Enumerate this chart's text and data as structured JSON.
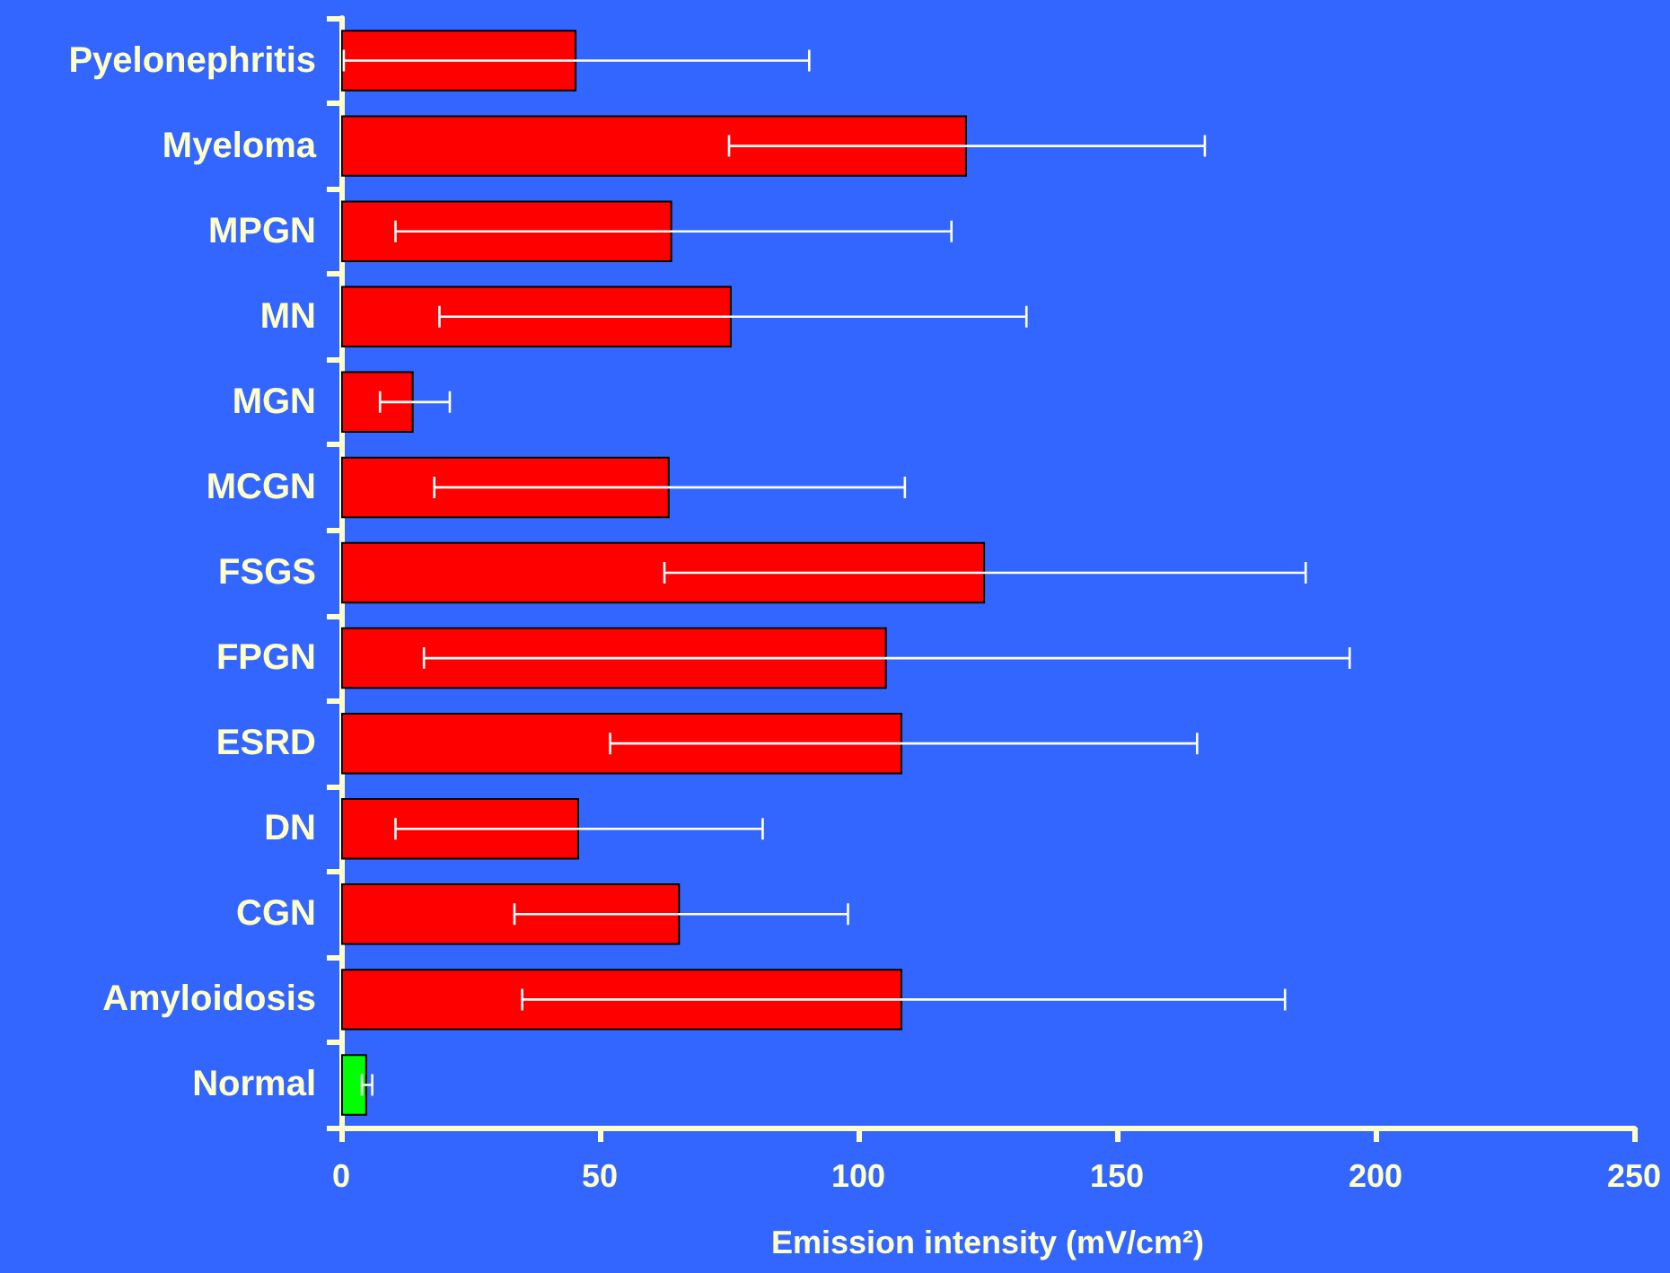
{
  "chart_data": {
    "type": "bar",
    "orientation": "horizontal",
    "xlabel": "Emission intensity (mV/cm²)",
    "categories": [
      "Pyelonephritis",
      "Myeloma",
      "MPGN",
      "MN",
      "MGN",
      "MCGN",
      "FSGS",
      "FPGN",
      "ESRD",
      "DN",
      "CGN",
      "Amyloidosis",
      "Normal"
    ],
    "values": [
      45.5,
      121,
      64,
      75.5,
      14,
      63.5,
      124.5,
      105.5,
      108.5,
      46,
      65.5,
      108.5,
      5
    ],
    "colors": [
      "#ff0000",
      "#ff0000",
      "#ff0000",
      "#ff0000",
      "#ff0000",
      "#ff0000",
      "#ff0000",
      "#ff0000",
      "#ff0000",
      "#ff0000",
      "#ff0000",
      "#ff0000",
      "#00ff00"
    ],
    "errors": [
      [
        0.5,
        90.5
      ],
      [
        75,
        167
      ],
      [
        10.5,
        118
      ],
      [
        19,
        132.5
      ],
      [
        7.5,
        21
      ],
      [
        18,
        109
      ],
      [
        62.5,
        186.5
      ],
      [
        16,
        195
      ],
      [
        52,
        165.5
      ],
      [
        10.5,
        81.5
      ],
      [
        33.5,
        98
      ],
      [
        35,
        182.5
      ],
      [
        4,
        6
      ]
    ],
    "xlim": [
      0,
      250
    ],
    "xticks": [
      0,
      50,
      100,
      150,
      200,
      250
    ],
    "grid": false
  }
}
